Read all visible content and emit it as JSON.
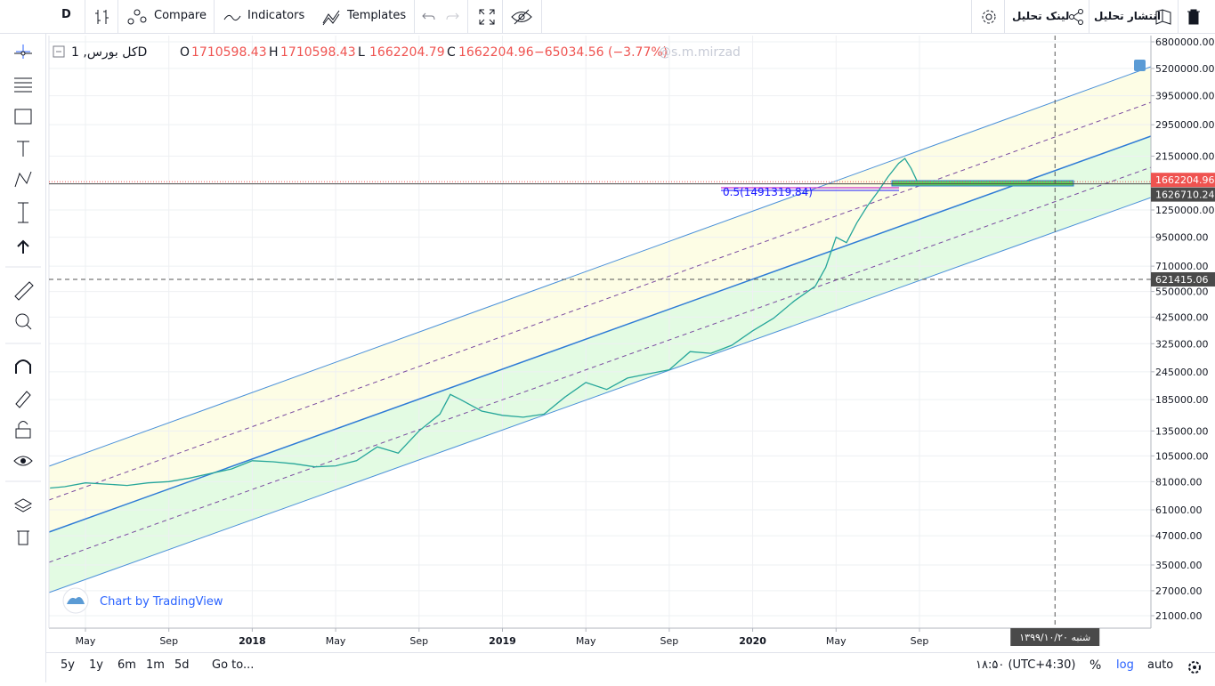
{
  "toolbar": {
    "interval": "D",
    "compare": "Compare",
    "indicators": "Indicators",
    "templates": "Templates",
    "share_link": "لینک تحلیل",
    "publish": "انتشار تحلیل"
  },
  "legend": {
    "symbol": "کل بورس, 1D",
    "o_label": "O",
    "open": "1710598.43",
    "h_label": "H",
    "high": "1710598.43",
    "l_label": "L",
    "low": "1662204.79",
    "c_label": "C",
    "close": "1662204.96",
    "change": "−65034.56 (−3.77%)",
    "watermark": "@s.m.mirzad"
  },
  "fib_label": "0.5(1491319.84)",
  "attribution": "Chart by TradingView",
  "bottom": {
    "ranges": [
      "5y",
      "1y",
      "6m",
      "1m",
      "5d"
    ],
    "goto": "Go to...",
    "time": "۱۸:۵۰ (UTC+4:30)",
    "percent": "%",
    "log": "log",
    "auto": "auto"
  },
  "chart_data": {
    "type": "line",
    "log_scale": true,
    "x": [
      2.3,
      3,
      4,
      5,
      6,
      7,
      8,
      9,
      10,
      11,
      12,
      13,
      14,
      15,
      16,
      17,
      18,
      19,
      20,
      21,
      21.5,
      22,
      23,
      24,
      25,
      26,
      27,
      28,
      29,
      30,
      31,
      32,
      33,
      34,
      35,
      36,
      37,
      38,
      39,
      39.5,
      40,
      40.5,
      41,
      41.5,
      42,
      42.5,
      43,
      43.3,
      43.6,
      43.9
    ],
    "series": [
      {
        "color": "#26a69a",
        "values": [
          76000,
          77000,
          80000,
          79000,
          78000,
          80000,
          81000,
          84000,
          88000,
          92000,
          100000,
          99000,
          97000,
          94000,
          95000,
          100000,
          115000,
          108000,
          135000,
          160000,
          195000,
          185000,
          165000,
          158000,
          155000,
          160000,
          190000,
          220000,
          205000,
          230000,
          240000,
          250000,
          300000,
          295000,
          320000,
          370000,
          420000,
          500000,
          580000,
          700000,
          950000,
          900000,
          1100000,
          1300000,
          1500000,
          1750000,
          2000000,
          2100000,
          1900000,
          1662204.96
        ]
      }
    ],
    "xlim": [
      2.25,
      55.1
    ],
    "xticks": [
      {
        "value": 4,
        "label": "May"
      },
      {
        "value": 8,
        "label": "Sep"
      },
      {
        "value": 12,
        "label": "2018"
      },
      {
        "value": 16,
        "label": "May"
      },
      {
        "value": 20,
        "label": "Sep"
      },
      {
        "value": 24,
        "label": "2019"
      },
      {
        "value": 28,
        "label": "May"
      },
      {
        "value": 32,
        "label": "Sep"
      },
      {
        "value": 36,
        "label": "2020"
      },
      {
        "value": 40,
        "label": "May"
      },
      {
        "value": 44,
        "label": "Sep"
      }
    ],
    "ylim": [
      18520,
      7240000
    ],
    "yticks": [
      {
        "value": 6800000,
        "label": "6800000.00"
      },
      {
        "value": 5200000,
        "label": "5200000.00"
      },
      {
        "value": 3950000,
        "label": "3950000.00"
      },
      {
        "value": 2950000,
        "label": "2950000.00"
      },
      {
        "value": 2150000,
        "label": "2150000.00"
      },
      {
        "value": 1250000,
        "label": "1250000.00"
      },
      {
        "value": 950000,
        "label": "950000.00"
      },
      {
        "value": 710000,
        "label": "710000.00"
      },
      {
        "value": 550000,
        "label": "550000.00"
      },
      {
        "value": 425000,
        "label": "425000.00"
      },
      {
        "value": 325000,
        "label": "325000.00"
      },
      {
        "value": 245000,
        "label": "245000.00"
      },
      {
        "value": 185000,
        "label": "185000.00"
      },
      {
        "value": 135000,
        "label": "135000.00"
      },
      {
        "value": 105000,
        "label": "105000.00"
      },
      {
        "value": 81000,
        "label": "81000.00"
      },
      {
        "value": 61000,
        "label": "61000.00"
      },
      {
        "value": 47000,
        "label": "47000.00"
      },
      {
        "value": 35000,
        "label": "35000.00"
      },
      {
        "value": 27000,
        "label": "27000.00"
      },
      {
        "value": 21000,
        "label": "21000.00"
      }
    ],
    "grid": true,
    "price_lines": {
      "values": [
        1662204.96,
        1626710.24
      ],
      "colors": [
        "#ef5350",
        "#4a4a4a"
      ]
    },
    "crosshair": {
      "x": 50.5,
      "price": 621415.06,
      "date_label": "شنبه ۱۳۹۹/۱۰/۲۰"
    }
  }
}
